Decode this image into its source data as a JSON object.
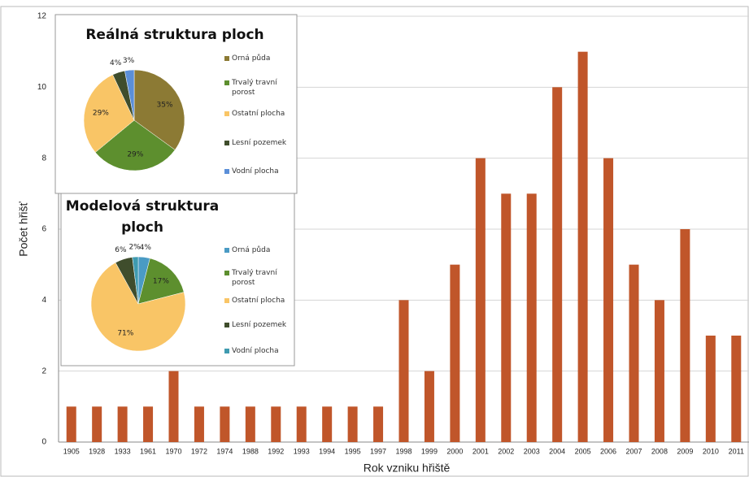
{
  "chart_data": [
    {
      "type": "bar",
      "x_label": "Rok vzniku hřiště",
      "y_label": "Počet hřišť",
      "categories": [
        "1905",
        "1928",
        "1933",
        "1961",
        "1970",
        "1972",
        "1974",
        "1988",
        "1992",
        "1993",
        "1994",
        "1995",
        "1997",
        "1998",
        "1999",
        "2000",
        "2001",
        "2002",
        "2003",
        "2004",
        "2005",
        "2006",
        "2007",
        "2008",
        "2009",
        "2010",
        "2011"
      ],
      "values": [
        1,
        1,
        1,
        1,
        2,
        1,
        1,
        1,
        1,
        1,
        1,
        1,
        1,
        4,
        2,
        5,
        8,
        7,
        7,
        10,
        11,
        8,
        5,
        4,
        6,
        3,
        3
      ],
      "color": "#c0562a",
      "ylim": [
        0,
        12
      ],
      "yticks": [
        0,
        2,
        4,
        6,
        8,
        10,
        12
      ],
      "grid": true
    },
    {
      "type": "pie",
      "title": "Reálná struktura ploch",
      "categories": [
        "Orná půda",
        "Trvalý travní porost",
        "Ostatní plocha",
        "Lesní pozemek",
        "Vodní plocha"
      ],
      "values": [
        35,
        29,
        29,
        4,
        3
      ],
      "value_labels": [
        "35%",
        "29%",
        "29%",
        "4%",
        "3%"
      ],
      "colors": [
        "#8c7a34",
        "#5d8f2e",
        "#f9c566",
        "#3f4d2c",
        "#5b8fd8"
      ]
    },
    {
      "type": "pie",
      "title": "Modelová struktura ploch",
      "categories": [
        "Orná půda",
        "Trvalý travní porost",
        "Ostatní plocha",
        "Lesní pozemek",
        "Vodní plocha"
      ],
      "values": [
        4,
        17,
        71,
        6,
        2
      ],
      "value_labels": [
        "4%",
        "17%",
        "71%",
        "6%",
        "2%"
      ],
      "colors": [
        "#4a9bc4",
        "#5d8f2e",
        "#f9c566",
        "#3f4d2c",
        "#3f9bb0"
      ]
    }
  ]
}
